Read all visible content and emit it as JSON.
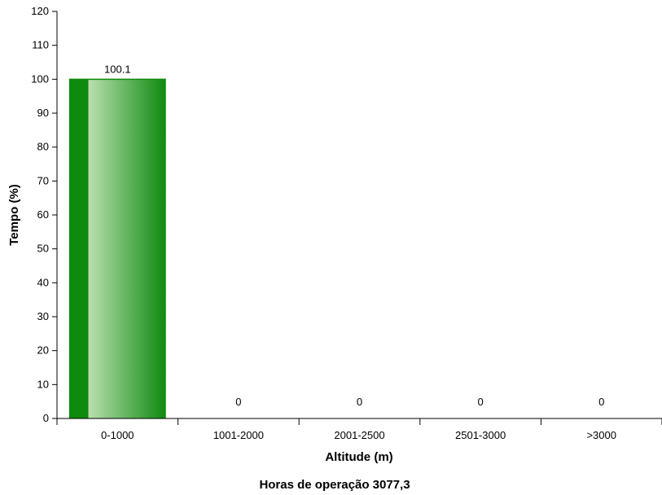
{
  "chart_data": {
    "type": "bar",
    "categories": [
      "0-1000",
      "1001-2000",
      "2001-2500",
      "2501-3000",
      ">3000"
    ],
    "values": [
      100.1,
      0,
      0,
      0,
      0
    ],
    "data_labels": [
      "100.1",
      "0",
      "0",
      "0",
      "0"
    ],
    "ylabel": "Tempo (%)",
    "xlabel": "Altitude (m)",
    "footer": "Horas de operação 3077,3",
    "ylim": [
      0,
      120
    ],
    "yticks": [
      0,
      10,
      20,
      30,
      40,
      50,
      60,
      70,
      80,
      90,
      100,
      110,
      120
    ],
    "grid": false,
    "legend": "none",
    "colors": {
      "bar_dark": "#0e8a0e",
      "bar_light": "#b9dfb0",
      "axis": "#000000"
    }
  }
}
